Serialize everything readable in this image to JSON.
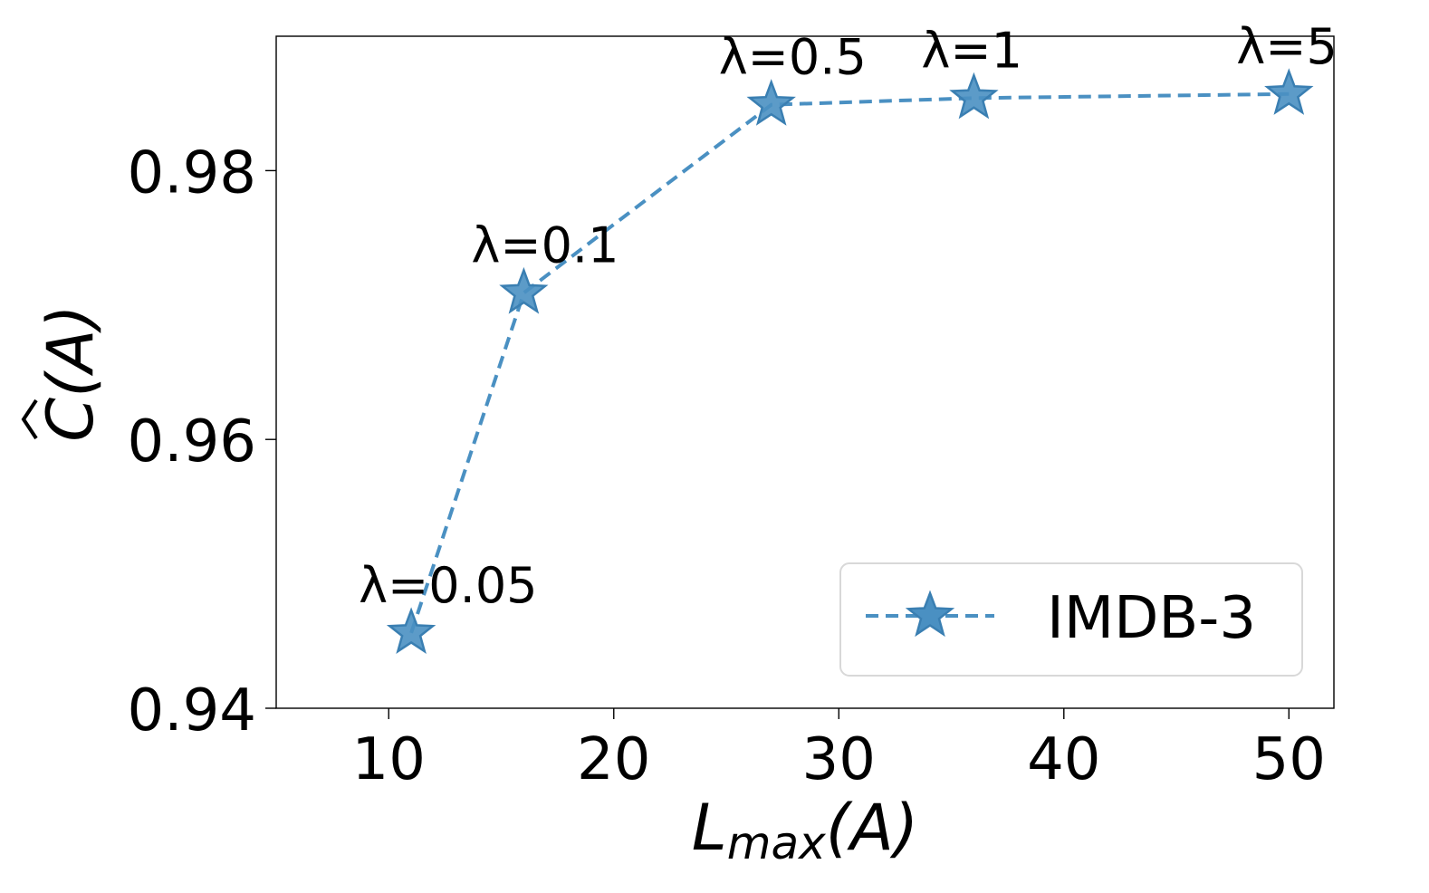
{
  "chart_data": {
    "type": "line",
    "xlabel": "L",
    "xlabel_subscript": "max",
    "xlabel_suffix": "(A)",
    "ylabel": "C(A)",
    "xlim": [
      5,
      52
    ],
    "ylim": [
      0.94,
      0.99
    ],
    "xticks": [
      10,
      20,
      30,
      40,
      50
    ],
    "yticks": [
      0.94,
      0.96,
      0.98
    ],
    "xtick_labels": [
      "10",
      "20",
      "30",
      "40",
      "50"
    ],
    "ytick_labels": [
      "0.94",
      "0.96",
      "0.98"
    ],
    "grid": false,
    "legend_position": "lower-right",
    "series": [
      {
        "name": "IMDB-3",
        "color": "#4a90c2",
        "marker": "star",
        "line_style": "dashed",
        "x": [
          11,
          16,
          27,
          36,
          50
        ],
        "y": [
          0.9456,
          0.9709,
          0.9849,
          0.9854,
          0.9857
        ],
        "annotations": [
          "λ=0.05",
          "λ=0.1",
          "λ=0.5",
          "λ=1",
          "λ=5"
        ]
      }
    ]
  }
}
